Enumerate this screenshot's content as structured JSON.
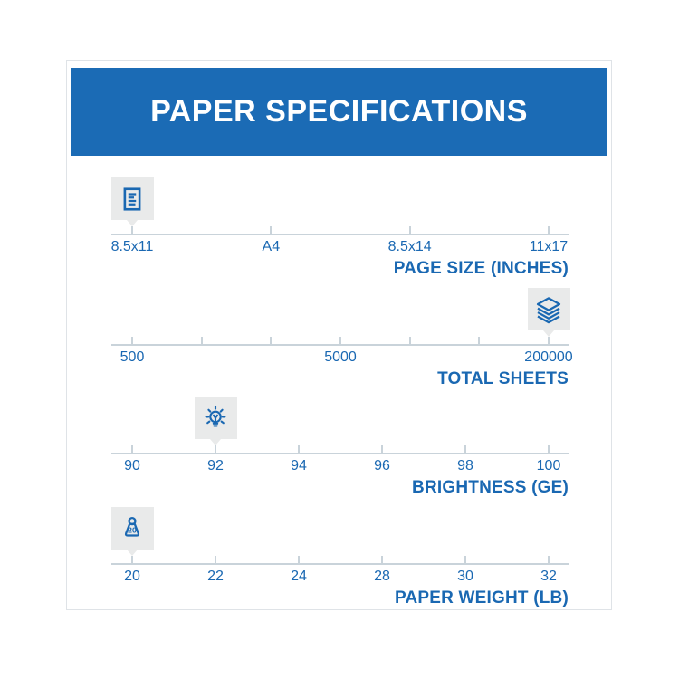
{
  "header": {
    "title": "PAPER SPECIFICATIONS"
  },
  "colors": {
    "banner_blue": "#1b6bb5",
    "text_blue": "#1a68b2",
    "line_gray": "#c9d3da",
    "badge_gray": "#e9eaea"
  },
  "scales": [
    {
      "title": "PAGE SIZE (INCHES)",
      "icon": "document-icon",
      "marker_index": 0,
      "marker_value": "8.5x11",
      "ticks": [
        "8.5x11",
        "A4",
        "8.5x14",
        "11x17"
      ]
    },
    {
      "title": "TOTAL SHEETS",
      "icon": "sheets-stack-icon",
      "marker_index": 6,
      "marker_value": "200000",
      "ticks": [
        "500",
        "",
        "",
        "5000",
        "",
        "",
        "200000"
      ]
    },
    {
      "title": "BRIGHTNESS (GE)",
      "icon": "lightbulb-icon",
      "marker_index": 1,
      "marker_value": "92",
      "ticks": [
        "90",
        "92",
        "94",
        "96",
        "98",
        "100"
      ]
    },
    {
      "title": "PAPER WEIGHT (LB)",
      "icon": "weight-icon",
      "marker_index": 0,
      "marker_value": "20",
      "icon_text": "20",
      "ticks": [
        "20",
        "22",
        "24",
        "28",
        "30",
        "32"
      ]
    }
  ]
}
